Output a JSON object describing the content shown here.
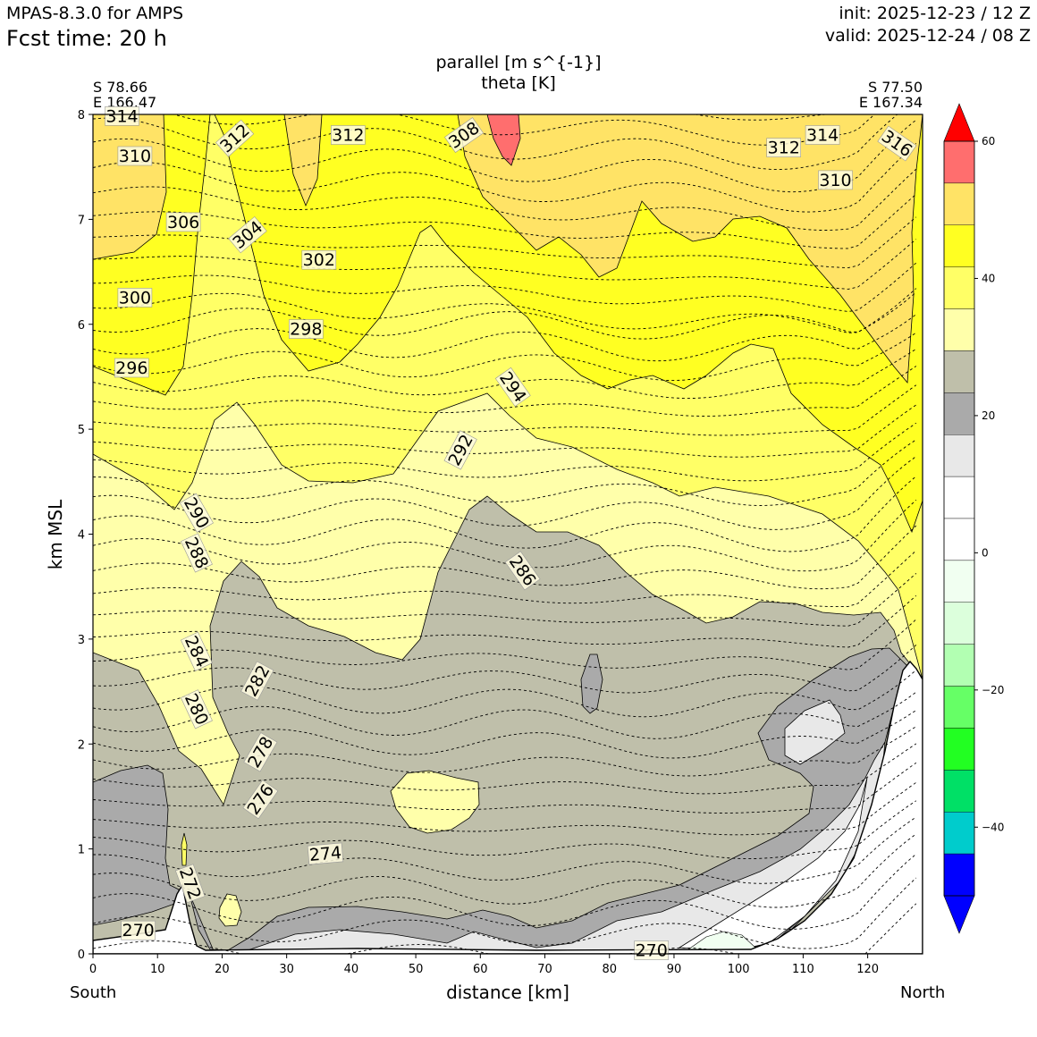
{
  "header": {
    "model": "MPAS-8.3.0 for AMPS",
    "fcst": "Fcst time:   20 h",
    "init": "init: 2025-12-23 / 12 Z",
    "valid": "valid: 2025-12-24 / 08 Z"
  },
  "chart_data": {
    "type": "cross-section contour",
    "title_fill": "parallel [m s^{-1}]",
    "title_lines": "theta [K]",
    "left_endpoint": {
      "lat": "S 78.66",
      "lon": "E 166.47"
    },
    "right_endpoint": {
      "lat": "S 77.50",
      "lon": "E 167.34"
    },
    "xlabel": "distance [km]",
    "ylabel": "km MSL",
    "x_left_label": "South",
    "x_right_label": "North",
    "xlim": [
      0,
      128.5
    ],
    "ylim": [
      0,
      8
    ],
    "xticks": [
      "0",
      "10",
      "20",
      "30",
      "40",
      "50",
      "60",
      "70",
      "80",
      "90",
      "100",
      "110",
      "120"
    ],
    "yticks": [
      "0",
      "1",
      "2",
      "3",
      "4",
      "5",
      "6",
      "7",
      "8"
    ],
    "colorbar": {
      "ticks": [
        "60",
        "40",
        "20",
        "0",
        "−20",
        "−40"
      ],
      "tick_values": [
        60,
        40,
        20,
        0,
        -20,
        -40
      ],
      "levels": [
        -55,
        -50,
        -45,
        -40,
        -35,
        -30,
        -25,
        -20,
        -15,
        -10,
        -5,
        0,
        5,
        10,
        15,
        20,
        25,
        30,
        35,
        40,
        45,
        50,
        55,
        60
      ],
      "colors": [
        "#0000ff",
        "#0000ff",
        "#00cccc",
        "#00e066",
        "#22ff22",
        "#66ff66",
        "#b2ffb2",
        "#dcffdc",
        "#f1fff1",
        "#ffffff",
        "#ffffff",
        "#e8e8e8",
        "#aaaaaa",
        "#bfbfaa",
        "#ffffaa",
        "#ffff66",
        "#ffff22",
        "#ffe366",
        "#ff6e6e",
        "#ff0000"
      ]
    },
    "theta_labels": [
      {
        "x": 4.5,
        "y": 7.98,
        "text": "314",
        "rot": 0
      },
      {
        "x": 6.5,
        "y": 7.6,
        "text": "310",
        "rot": 0
      },
      {
        "x": 22,
        "y": 7.77,
        "text": "312",
        "rot": -42
      },
      {
        "x": 39.5,
        "y": 7.8,
        "text": "312",
        "rot": 0
      },
      {
        "x": 57.5,
        "y": 7.8,
        "text": "308",
        "rot": -35
      },
      {
        "x": 107,
        "y": 7.68,
        "text": "312",
        "rot": 0
      },
      {
        "x": 113,
        "y": 7.8,
        "text": "314",
        "rot": 0
      },
      {
        "x": 124.5,
        "y": 7.72,
        "text": "316",
        "rot": 35
      },
      {
        "x": 115,
        "y": 7.37,
        "text": "310",
        "rot": 0
      },
      {
        "x": 14,
        "y": 6.97,
        "text": "306",
        "rot": 0
      },
      {
        "x": 24,
        "y": 6.85,
        "text": "304",
        "rot": -40
      },
      {
        "x": 35,
        "y": 6.61,
        "text": "302",
        "rot": 0
      },
      {
        "x": 6.5,
        "y": 6.25,
        "text": "300",
        "rot": 0
      },
      {
        "x": 33,
        "y": 5.95,
        "text": "298",
        "rot": 0
      },
      {
        "x": 6,
        "y": 5.58,
        "text": "296",
        "rot": 0
      },
      {
        "x": 65,
        "y": 5.4,
        "text": "294",
        "rot": 55
      },
      {
        "x": 57,
        "y": 4.8,
        "text": "292",
        "rot": -62
      },
      {
        "x": 16,
        "y": 4.2,
        "text": "290",
        "rot": 60
      },
      {
        "x": 16,
        "y": 3.82,
        "text": "288",
        "rot": 65
      },
      {
        "x": 66.5,
        "y": 3.65,
        "text": "286",
        "rot": 55
      },
      {
        "x": 16,
        "y": 2.88,
        "text": "284",
        "rot": 65
      },
      {
        "x": 25.5,
        "y": 2.6,
        "text": "282",
        "rot": -62
      },
      {
        "x": 16,
        "y": 2.33,
        "text": "280",
        "rot": 65
      },
      {
        "x": 26,
        "y": 1.92,
        "text": "278",
        "rot": -60
      },
      {
        "x": 26,
        "y": 1.47,
        "text": "276",
        "rot": -55
      },
      {
        "x": 36,
        "y": 0.95,
        "text": "274",
        "rot": -5
      },
      {
        "x": 15,
        "y": 0.67,
        "text": "272",
        "rot": 70
      },
      {
        "x": 7,
        "y": 0.22,
        "text": "270",
        "rot": 0
      },
      {
        "x": 86.5,
        "y": 0.03,
        "text": "270",
        "rot": 0
      }
    ]
  }
}
